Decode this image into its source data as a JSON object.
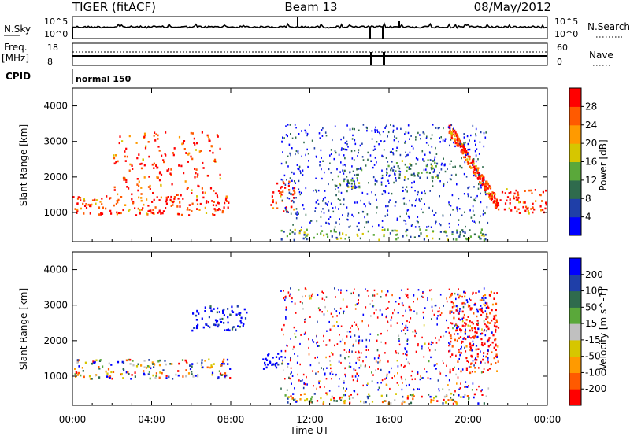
{
  "header": {
    "title": "TIGER (fitACF)",
    "beam": "Beam 13",
    "date": "08/May/2012"
  },
  "status_panels": {
    "nsky": {
      "label": "N.Sky",
      "ticks": [
        "10^5",
        "10^0"
      ],
      "right_label": "N.Search",
      "right_ticks": [
        "10^5",
        "10^0"
      ]
    },
    "freq": {
      "label_line1": "Freq.",
      "label_line2": "[MHz]",
      "ticks": [
        "18",
        "8"
      ],
      "right_label": "Nave",
      "right_ticks": [
        "60",
        "0"
      ]
    },
    "cpid": {
      "label": "CPID",
      "text": "normal 150"
    }
  },
  "chart_data": [
    {
      "type": "heatmap",
      "name": "power",
      "xlabel": "",
      "ylabel": "Slant Range [km]",
      "xlim": [
        0,
        24
      ],
      "ylim": [
        180,
        4500
      ],
      "yticks": [
        1000,
        2000,
        3000,
        4000
      ],
      "xticks": [
        0,
        4,
        8,
        12,
        16,
        20,
        24
      ],
      "colorbar": {
        "label": "Power [dB]",
        "range": [
          0,
          32
        ],
        "ticks": [
          "28",
          "24",
          "20",
          "16",
          "12",
          "8",
          "4"
        ],
        "colors": [
          "#0000ff",
          "#1f3fa8",
          "#2f6b4d",
          "#5aa83a",
          "#d6c600",
          "#ff9a00",
          "#ff5a00",
          "#ff0000"
        ]
      },
      "scatter_regions": [
        {
          "t": [
            0.0,
            8.0
          ],
          "r": [
            950,
            1500
          ],
          "value": "strong"
        },
        {
          "t": [
            2.0,
            7.5
          ],
          "r": [
            1500,
            3300
          ],
          "value": "strong-stripes"
        },
        {
          "t": [
            10.0,
            11.2
          ],
          "r": [
            1050,
            1900
          ],
          "value": "strong"
        },
        {
          "t": [
            10.5,
            21.0
          ],
          "r": [
            250,
            550
          ],
          "value": "weak"
        },
        {
          "t": [
            13.2,
            14.6
          ],
          "r": [
            1700,
            2300
          ],
          "value": "medium"
        },
        {
          "t": [
            15.8,
            18.5
          ],
          "r": [
            2000,
            2500
          ],
          "value": "medium"
        },
        {
          "t": [
            19.0,
            21.5
          ],
          "r": [
            1100,
            3400
          ],
          "value": "strong-descending"
        },
        {
          "t": [
            21.5,
            24.0
          ],
          "r": [
            1000,
            1700
          ],
          "value": "strong"
        }
      ]
    },
    {
      "type": "heatmap",
      "name": "velocity",
      "xlabel": "Time UT",
      "ylabel": "Slant Range [km]",
      "xlim": [
        0,
        24
      ],
      "ylim": [
        180,
        4500
      ],
      "yticks": [
        1000,
        2000,
        3000,
        4000
      ],
      "xticks": [
        0,
        4,
        8,
        12,
        16,
        20,
        24
      ],
      "xticklabels": [
        "00:00",
        "04:00",
        "08:00",
        "12:00",
        "16:00",
        "20:00",
        "00:00"
      ],
      "colorbar": {
        "label": "Velocity [m s^-1]",
        "range": [
          -250,
          250
        ],
        "ticks": [
          "200",
          "100",
          "50",
          "15",
          "-15",
          "-50",
          "-100",
          "-200"
        ],
        "colors": [
          "#ff0000",
          "#ff5a00",
          "#ff9a00",
          "#d6c600",
          "#c0c0c0",
          "#5aa83a",
          "#2f6b4d",
          "#1f3fa8",
          "#0000ff"
        ]
      },
      "scatter_regions": [
        {
          "t": [
            0.0,
            8.0
          ],
          "r": [
            950,
            1500
          ],
          "value": "mixed"
        },
        {
          "t": [
            6.0,
            8.8
          ],
          "r": [
            2300,
            3000
          ],
          "value": "toward"
        },
        {
          "t": [
            9.6,
            11.0
          ],
          "r": [
            1200,
            1700
          ],
          "value": "toward"
        },
        {
          "t": [
            10.5,
            21.0
          ],
          "r": [
            250,
            550
          ],
          "value": "mixed"
        },
        {
          "t": [
            19.0,
            21.5
          ],
          "r": [
            1100,
            3400
          ],
          "value": "away"
        }
      ]
    }
  ]
}
